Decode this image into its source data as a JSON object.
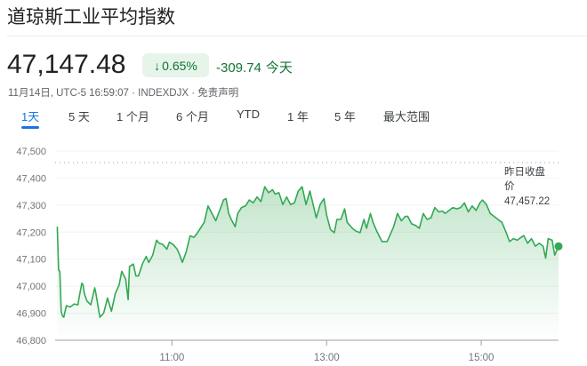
{
  "header": {
    "title": "道琼斯工业平均指数"
  },
  "quote": {
    "price": "47,147.48",
    "change_pct": "0.65%",
    "change_icon": "arrow-down-icon",
    "change_abs": "-309.74",
    "change_period": "今天",
    "meta": "11月14日, UTC-5 16:59:07 · INDEXDJX · 免责声明",
    "positive_color": "#137333"
  },
  "tabs": [
    {
      "label": "1天",
      "active": true
    },
    {
      "label": "5 天"
    },
    {
      "label": "1 个月"
    },
    {
      "label": "6 个月"
    },
    {
      "label": "YTD"
    },
    {
      "label": "1 年"
    },
    {
      "label": "5 年"
    },
    {
      "label": "最大范围"
    }
  ],
  "chart_data": {
    "type": "area",
    "color": "#34a853",
    "ylim": [
      46800,
      47500
    ],
    "yticks": [
      "47,500",
      "47,400",
      "47,300",
      "47,200",
      "47,100",
      "47,000",
      "46,900",
      "46,800"
    ],
    "xlim": [
      "09:30",
      "16:00"
    ],
    "xticks": [
      "11:00",
      "13:00",
      "15:00"
    ],
    "previous_close": {
      "label_line1": "昨日收盘",
      "label_line2": "价",
      "value": 47457.22,
      "value_text": "47,457.22"
    },
    "series": {
      "x": [
        "09:31",
        "09:32",
        "09:33",
        "09:34",
        "09:35",
        "09:36",
        "09:38",
        "09:41",
        "09:44",
        "09:47",
        "09:48",
        "09:50",
        "09:51",
        "09:52",
        "09:54",
        "09:57",
        "10:00",
        "10:01",
        "10:04",
        "10:07",
        "10:10",
        "10:13",
        "10:16",
        "10:19",
        "10:21",
        "10:24",
        "10:26",
        "10:27",
        "10:30",
        "10:32",
        "10:34",
        "10:37",
        "10:40",
        "10:42",
        "10:45",
        "10:48",
        "10:50",
        "10:53",
        "10:56",
        "10:58",
        "11:01",
        "11:04",
        "11:06",
        "11:08",
        "11:11",
        "11:14",
        "11:17",
        "11:19",
        "11:22",
        "11:25",
        "11:28",
        "11:31",
        "11:34",
        "11:37",
        "11:40",
        "11:42",
        "11:44",
        "11:46",
        "11:49",
        "11:51",
        "11:54",
        "11:57",
        "12:00",
        "12:03",
        "12:06",
        "12:09",
        "12:12",
        "12:15",
        "12:18",
        "12:20",
        "12:23",
        "12:26",
        "12:29",
        "12:32",
        "12:35",
        "12:38",
        "12:41",
        "12:44",
        "12:47",
        "12:49",
        "12:52",
        "12:55",
        "12:58",
        "13:00",
        "13:03",
        "13:06",
        "13:08",
        "13:11",
        "13:14",
        "13:16",
        "13:20",
        "13:23",
        "13:26",
        "13:29",
        "13:31",
        "13:34",
        "13:36",
        "13:39",
        "13:43",
        "13:47",
        "13:52",
        "13:55",
        "13:58",
        "14:01",
        "14:03",
        "14:06",
        "14:09",
        "14:12",
        "14:15",
        "14:18",
        "14:21",
        "14:24",
        "14:27",
        "14:30",
        "14:32",
        "14:35",
        "14:38",
        "14:41",
        "14:44",
        "14:47",
        "14:50",
        "14:53",
        "14:56",
        "14:59",
        "15:01",
        "15:04",
        "15:07",
        "15:10",
        "15:13",
        "15:16",
        "15:19",
        "15:22",
        "15:25",
        "15:28",
        "15:31",
        "15:33",
        "15:36",
        "15:39",
        "15:42",
        "15:45",
        "15:48",
        "15:50",
        "15:52",
        "15:55",
        "15:57",
        "16:00"
      ],
      "y": [
        47220,
        47060,
        47055,
        46907,
        46890,
        46885,
        46928,
        46923,
        46934,
        46931,
        46961,
        47011,
        47005,
        46972,
        46945,
        46931,
        46994,
        46972,
        46885,
        46901,
        46956,
        46907,
        46972,
        47005,
        47055,
        47027,
        46950,
        47072,
        47082,
        47038,
        47038,
        47082,
        47110,
        47088,
        47115,
        47170,
        47159,
        47154,
        47137,
        47163,
        47154,
        47137,
        47115,
        47088,
        47126,
        47186,
        47181,
        47192,
        47214,
        47236,
        47297,
        47269,
        47242,
        47280,
        47319,
        47324,
        47269,
        47247,
        47220,
        47269,
        47291,
        47297,
        47319,
        47308,
        47330,
        47313,
        47368,
        47346,
        47357,
        47341,
        47346,
        47302,
        47330,
        47302,
        47308,
        47352,
        47368,
        47302,
        47352,
        47313,
        47253,
        47302,
        47324,
        47264,
        47209,
        47198,
        47247,
        47247,
        47286,
        47236,
        47214,
        47203,
        47198,
        47247,
        47214,
        47269,
        47236,
        47203,
        47165,
        47165,
        47220,
        47269,
        47242,
        47258,
        47258,
        47231,
        47225,
        47214,
        47269,
        47247,
        47253,
        47291,
        47275,
        47278,
        47269,
        47280,
        47291,
        47286,
        47291,
        47308,
        47275,
        47297,
        47280,
        47308,
        47319,
        47302,
        47269,
        47258,
        47247,
        47236,
        47203,
        47165,
        47176,
        47170,
        47181,
        47187,
        47159,
        47176,
        47148,
        47159,
        47148,
        47104,
        47176,
        47170,
        47115,
        47147.48
      ]
    }
  }
}
